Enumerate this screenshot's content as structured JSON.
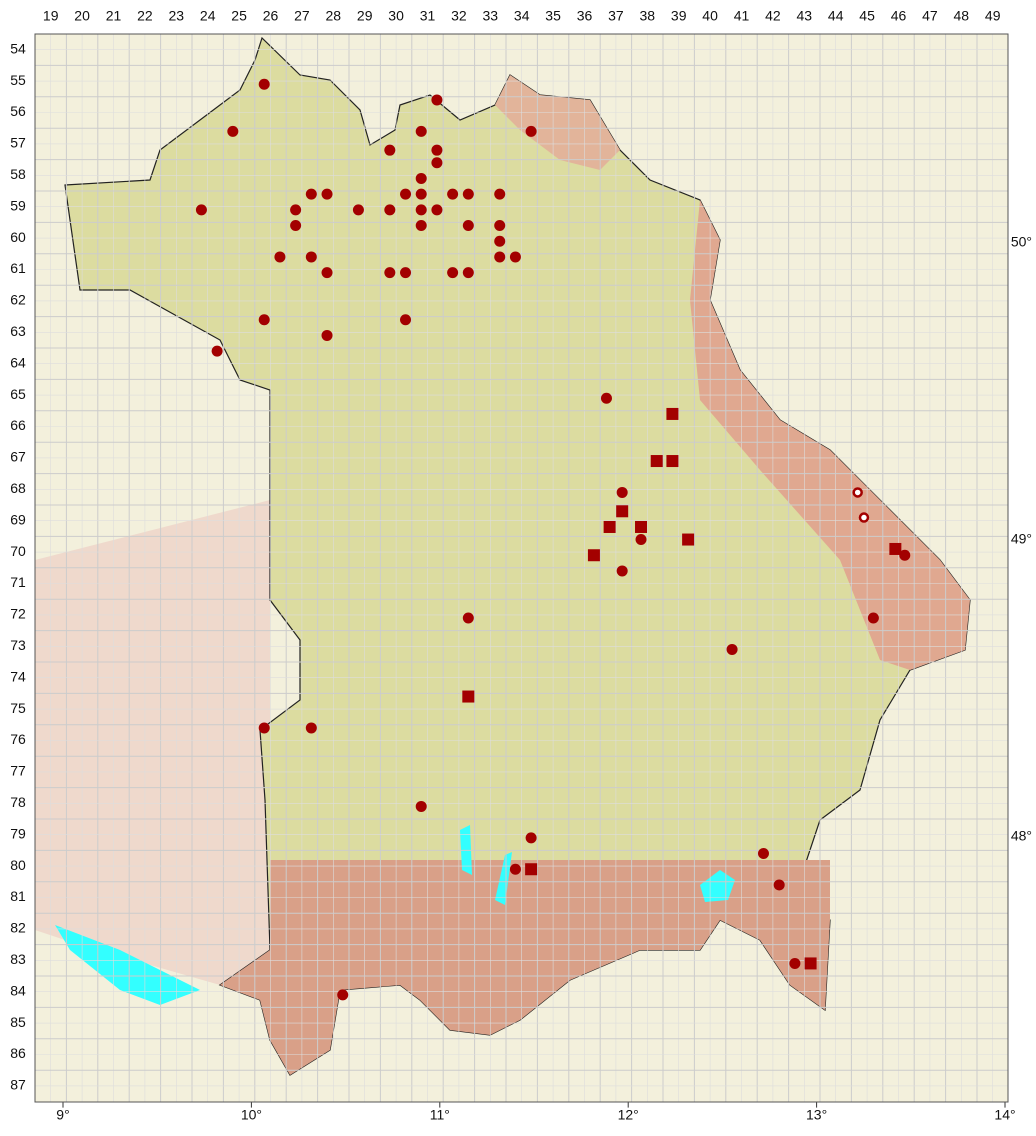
{
  "map": {
    "columns": [
      19,
      20,
      21,
      22,
      23,
      24,
      25,
      26,
      27,
      28,
      29,
      30,
      31,
      32,
      33,
      34,
      35,
      36,
      37,
      38,
      39,
      40,
      41,
      42,
      43,
      44,
      45,
      46,
      47,
      48,
      49
    ],
    "rows": [
      54,
      55,
      56,
      57,
      58,
      59,
      60,
      61,
      62,
      63,
      64,
      65,
      66,
      67,
      68,
      69,
      70,
      71,
      72,
      73,
      74,
      75,
      76,
      77,
      78,
      79,
      80,
      81,
      82,
      83,
      84,
      85,
      86,
      87
    ],
    "longitudes": [
      {
        "value": 9,
        "label": "9°"
      },
      {
        "value": 10,
        "label": "10°"
      },
      {
        "value": 11,
        "label": "11°"
      },
      {
        "value": 12,
        "label": "12°"
      },
      {
        "value": 13,
        "label": "13°"
      },
      {
        "value": 14,
        "label": "14°"
      }
    ],
    "latitudes": [
      {
        "value": 50,
        "label": "50°"
      },
      {
        "value": 49,
        "label": "49°"
      },
      {
        "value": 48,
        "label": "48°"
      }
    ],
    "points": {
      "dot": [
        {
          "col": 25.8,
          "row": 55.1
        },
        {
          "col": 24.8,
          "row": 56.6
        },
        {
          "col": 31.3,
          "row": 55.6
        },
        {
          "col": 30.8,
          "row": 56.6
        },
        {
          "col": 34.3,
          "row": 56.6
        },
        {
          "col": 29.8,
          "row": 57.2
        },
        {
          "col": 31.3,
          "row": 57.2
        },
        {
          "col": 31.3,
          "row": 57.6
        },
        {
          "col": 30.8,
          "row": 58.1
        },
        {
          "col": 23.8,
          "row": 59.1
        },
        {
          "col": 27.3,
          "row": 58.6
        },
        {
          "col": 27.8,
          "row": 58.6
        },
        {
          "col": 30.3,
          "row": 58.6
        },
        {
          "col": 30.8,
          "row": 58.6
        },
        {
          "col": 31.8,
          "row": 58.6
        },
        {
          "col": 32.3,
          "row": 58.6
        },
        {
          "col": 33.3,
          "row": 58.6
        },
        {
          "col": 26.8,
          "row": 59.1
        },
        {
          "col": 28.8,
          "row": 59.1
        },
        {
          "col": 29.8,
          "row": 59.1
        },
        {
          "col": 30.8,
          "row": 59.1
        },
        {
          "col": 31.3,
          "row": 59.1
        },
        {
          "col": 26.8,
          "row": 59.6
        },
        {
          "col": 30.8,
          "row": 59.6
        },
        {
          "col": 32.3,
          "row": 59.6
        },
        {
          "col": 33.3,
          "row": 59.6
        },
        {
          "col": 33.3,
          "row": 60.1
        },
        {
          "col": 26.3,
          "row": 60.6
        },
        {
          "col": 27.3,
          "row": 60.6
        },
        {
          "col": 33.3,
          "row": 60.6
        },
        {
          "col": 33.8,
          "row": 60.6
        },
        {
          "col": 27.8,
          "row": 61.1
        },
        {
          "col": 29.8,
          "row": 61.1
        },
        {
          "col": 30.3,
          "row": 61.1
        },
        {
          "col": 31.8,
          "row": 61.1
        },
        {
          "col": 32.3,
          "row": 61.1
        },
        {
          "col": 25.8,
          "row": 62.6
        },
        {
          "col": 30.3,
          "row": 62.6
        },
        {
          "col": 27.8,
          "row": 63.1
        },
        {
          "col": 24.3,
          "row": 63.6
        },
        {
          "col": 36.7,
          "row": 65.1
        },
        {
          "col": 37.2,
          "row": 68.1
        },
        {
          "col": 37.8,
          "row": 69.6
        },
        {
          "col": 37.2,
          "row": 70.6
        },
        {
          "col": 32.3,
          "row": 72.1
        },
        {
          "col": 40.7,
          "row": 73.1
        },
        {
          "col": 25.8,
          "row": 75.6
        },
        {
          "col": 27.3,
          "row": 75.6
        },
        {
          "col": 30.8,
          "row": 78.1
        },
        {
          "col": 34.3,
          "row": 79.1
        },
        {
          "col": 33.8,
          "row": 80.1
        },
        {
          "col": 41.7,
          "row": 79.6
        },
        {
          "col": 42.2,
          "row": 80.6
        },
        {
          "col": 42.7,
          "row": 83.1
        },
        {
          "col": 28.3,
          "row": 84.1
        },
        {
          "col": 46.2,
          "row": 70.1
        },
        {
          "col": 45.2,
          "row": 72.1
        }
      ],
      "square": [
        {
          "col": 38.8,
          "row": 65.6
        },
        {
          "col": 38.3,
          "row": 67.1
        },
        {
          "col": 38.8,
          "row": 67.1
        },
        {
          "col": 37.2,
          "row": 68.7
        },
        {
          "col": 36.8,
          "row": 69.2
        },
        {
          "col": 37.8,
          "row": 69.2
        },
        {
          "col": 39.3,
          "row": 69.6
        },
        {
          "col": 36.3,
          "row": 70.1
        },
        {
          "col": 32.3,
          "row": 74.6
        },
        {
          "col": 34.3,
          "row": 80.1
        },
        {
          "col": 43.2,
          "row": 83.1
        },
        {
          "col": 45.9,
          "row": 69.9
        }
      ],
      "open": [
        {
          "col": 44.7,
          "row": 68.1
        },
        {
          "col": 44.9,
          "row": 68.9
        }
      ]
    }
  }
}
